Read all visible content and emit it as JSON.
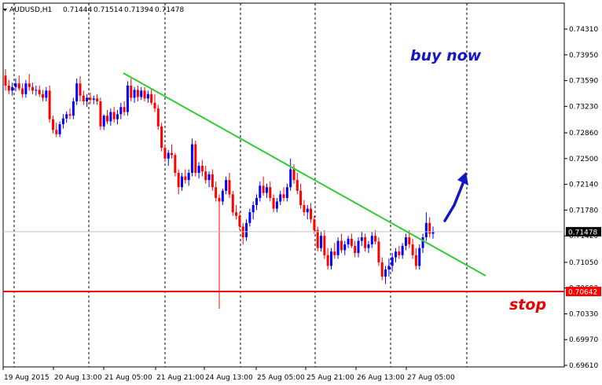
{
  "window": {
    "symbol_header": "AUDUSD,H1",
    "ohlc": [
      "0.71444",
      "0.71514",
      "0.71394",
      "0.71478"
    ]
  },
  "annotations": {
    "buy_label": "buy now",
    "stop_label": "stop"
  },
  "colors": {
    "background": "#ffffff",
    "bull_candle": "#0000ff",
    "bear_candle": "#ff0000",
    "trendline": "#33cc33",
    "stop_line": "#ff0000",
    "arrow": "#1414c8",
    "current_price_line": "#c0c0c0",
    "grid": "#000000"
  },
  "icons": {
    "menu": "triangle-down-icon",
    "arrow": "up-arrow-icon"
  },
  "chart_data": {
    "type": "candlestick",
    "symbol": "AUDUSD",
    "timeframe": "H1",
    "ylim": [
      0.6962,
      0.7456
    ],
    "y_ticks": [
      "0.74310",
      "0.73950",
      "0.73590",
      "0.73230",
      "0.72860",
      "0.72500",
      "0.72140",
      "0.71780",
      "0.71420",
      "0.71050",
      "0.70690",
      "0.70330",
      "0.69970",
      "0.69610"
    ],
    "x_labels": [
      "19 Aug 2015",
      "20 Aug 13:00",
      "21 Aug 05:00",
      "21 Aug 21:00",
      "24 Aug 13:00",
      "25 Aug 05:00",
      "25 Aug 21:00",
      "26 Aug 13:00",
      "27 Aug 05:00"
    ],
    "current_price": "0.71478",
    "stop_level": "0.70642",
    "candles": [
      [
        0.7366,
        0.7375,
        0.7345,
        0.7352
      ],
      [
        0.7352,
        0.736,
        0.734,
        0.7345
      ],
      [
        0.7345,
        0.7356,
        0.7338,
        0.735
      ],
      [
        0.735,
        0.7362,
        0.7344,
        0.7355
      ],
      [
        0.7355,
        0.7366,
        0.7345,
        0.7348
      ],
      [
        0.7348,
        0.7355,
        0.7335,
        0.734
      ],
      [
        0.734,
        0.736,
        0.7335,
        0.7355
      ],
      [
        0.7355,
        0.7368,
        0.7345,
        0.735
      ],
      [
        0.735,
        0.7356,
        0.734,
        0.7345
      ],
      [
        0.7345,
        0.7352,
        0.7338,
        0.7346
      ],
      [
        0.7346,
        0.7352,
        0.7336,
        0.734
      ],
      [
        0.734,
        0.7346,
        0.733,
        0.7335
      ],
      [
        0.7335,
        0.735,
        0.733,
        0.7345
      ],
      [
        0.7345,
        0.7352,
        0.73,
        0.7305
      ],
      [
        0.7305,
        0.731,
        0.7285,
        0.729
      ],
      [
        0.729,
        0.73,
        0.728,
        0.7284
      ],
      [
        0.7284,
        0.7302,
        0.728,
        0.7298
      ],
      [
        0.7298,
        0.7312,
        0.7292,
        0.7306
      ],
      [
        0.7306,
        0.7316,
        0.73,
        0.7312
      ],
      [
        0.7312,
        0.732,
        0.7305,
        0.731
      ],
      [
        0.731,
        0.7335,
        0.7305,
        0.733
      ],
      [
        0.733,
        0.7362,
        0.7325,
        0.7355
      ],
      [
        0.7355,
        0.7365,
        0.733,
        0.7338
      ],
      [
        0.7338,
        0.7345,
        0.7325,
        0.733
      ],
      [
        0.733,
        0.734,
        0.7322,
        0.7335
      ],
      [
        0.7335,
        0.7342,
        0.7326,
        0.7332
      ],
      [
        0.7332,
        0.7338,
        0.7326,
        0.7334
      ],
      [
        0.7334,
        0.734,
        0.7325,
        0.733
      ],
      [
        0.733,
        0.7335,
        0.729,
        0.7295
      ],
      [
        0.7295,
        0.7312,
        0.729,
        0.731
      ],
      [
        0.731,
        0.7318,
        0.7298,
        0.7302
      ],
      [
        0.7302,
        0.732,
        0.7296,
        0.7315
      ],
      [
        0.7315,
        0.7322,
        0.73,
        0.7305
      ],
      [
        0.7305,
        0.7318,
        0.7298,
        0.7312
      ],
      [
        0.7312,
        0.7328,
        0.7305,
        0.7322
      ],
      [
        0.7322,
        0.733,
        0.731,
        0.7315
      ],
      [
        0.7315,
        0.7358,
        0.731,
        0.7352
      ],
      [
        0.7352,
        0.7362,
        0.733,
        0.7335
      ],
      [
        0.7335,
        0.735,
        0.7328,
        0.7346
      ],
      [
        0.7346,
        0.7352,
        0.733,
        0.7336
      ],
      [
        0.7336,
        0.735,
        0.7332,
        0.7345
      ],
      [
        0.7345,
        0.735,
        0.733,
        0.7334
      ],
      [
        0.7334,
        0.7345,
        0.7328,
        0.734
      ],
      [
        0.734,
        0.7348,
        0.7325,
        0.7328
      ],
      [
        0.7328,
        0.734,
        0.7315,
        0.732
      ],
      [
        0.732,
        0.7325,
        0.729,
        0.7295
      ],
      [
        0.7295,
        0.73,
        0.726,
        0.7265
      ],
      [
        0.7265,
        0.727,
        0.7245,
        0.725
      ],
      [
        0.725,
        0.7262,
        0.724,
        0.7258
      ],
      [
        0.7258,
        0.727,
        0.725,
        0.7255
      ],
      [
        0.7255,
        0.7258,
        0.7225,
        0.723
      ],
      [
        0.723,
        0.7235,
        0.72,
        0.721
      ],
      [
        0.721,
        0.723,
        0.7205,
        0.7225
      ],
      [
        0.7225,
        0.7235,
        0.7215,
        0.722
      ],
      [
        0.722,
        0.7235,
        0.7212,
        0.723
      ],
      [
        0.723,
        0.7278,
        0.7225,
        0.727
      ],
      [
        0.727,
        0.7275,
        0.7225,
        0.723
      ],
      [
        0.723,
        0.7245,
        0.7222,
        0.724
      ],
      [
        0.724,
        0.7248,
        0.7225,
        0.7232
      ],
      [
        0.7232,
        0.724,
        0.7215,
        0.722
      ],
      [
        0.722,
        0.7232,
        0.721,
        0.7228
      ],
      [
        0.7228,
        0.7235,
        0.7205,
        0.721
      ],
      [
        0.721,
        0.7218,
        0.719,
        0.7195
      ],
      [
        0.7195,
        0.72,
        0.704,
        0.719
      ],
      [
        0.719,
        0.7208,
        0.7185,
        0.7205
      ],
      [
        0.7205,
        0.7225,
        0.72,
        0.722
      ],
      [
        0.722,
        0.723,
        0.7195,
        0.72
      ],
      [
        0.72,
        0.7205,
        0.717,
        0.7175
      ],
      [
        0.7175,
        0.7185,
        0.7165,
        0.717
      ],
      [
        0.717,
        0.7175,
        0.715,
        0.7155
      ],
      [
        0.7155,
        0.716,
        0.713,
        0.714
      ],
      [
        0.714,
        0.7165,
        0.7135,
        0.716
      ],
      [
        0.716,
        0.718,
        0.7155,
        0.7175
      ],
      [
        0.7175,
        0.719,
        0.7165,
        0.7185
      ],
      [
        0.7185,
        0.72,
        0.7178,
        0.7195
      ],
      [
        0.7195,
        0.7218,
        0.719,
        0.7212
      ],
      [
        0.7212,
        0.7225,
        0.7198,
        0.7202
      ],
      [
        0.7202,
        0.7215,
        0.7195,
        0.721
      ],
      [
        0.721,
        0.7218,
        0.719,
        0.7195
      ],
      [
        0.7195,
        0.72,
        0.7175,
        0.718
      ],
      [
        0.718,
        0.7195,
        0.7175,
        0.719
      ],
      [
        0.719,
        0.7205,
        0.7185,
        0.72
      ],
      [
        0.72,
        0.721,
        0.719,
        0.7195
      ],
      [
        0.7195,
        0.7215,
        0.719,
        0.721
      ],
      [
        0.721,
        0.725,
        0.7205,
        0.7235
      ],
      [
        0.7235,
        0.7242,
        0.7215,
        0.722
      ],
      [
        0.722,
        0.723,
        0.72,
        0.7205
      ],
      [
        0.7205,
        0.7215,
        0.718,
        0.7185
      ],
      [
        0.7185,
        0.7192,
        0.717,
        0.7175
      ],
      [
        0.7175,
        0.7185,
        0.7165,
        0.718
      ],
      [
        0.718,
        0.7188,
        0.716,
        0.7165
      ],
      [
        0.7165,
        0.717,
        0.7145,
        0.715
      ],
      [
        0.715,
        0.7155,
        0.712,
        0.7125
      ],
      [
        0.7125,
        0.7148,
        0.712,
        0.7142
      ],
      [
        0.7142,
        0.715,
        0.711,
        0.7115
      ],
      [
        0.7115,
        0.7125,
        0.7095,
        0.71
      ],
      [
        0.71,
        0.7125,
        0.7095,
        0.712
      ],
      [
        0.712,
        0.7132,
        0.711,
        0.7115
      ],
      [
        0.7115,
        0.714,
        0.711,
        0.7135
      ],
      [
        0.7135,
        0.7145,
        0.7118,
        0.7122
      ],
      [
        0.7122,
        0.7135,
        0.7115,
        0.713
      ],
      [
        0.713,
        0.7142,
        0.7125,
        0.7138
      ],
      [
        0.7138,
        0.7145,
        0.7125,
        0.7128
      ],
      [
        0.7128,
        0.7135,
        0.7112,
        0.7118
      ],
      [
        0.7118,
        0.714,
        0.7112,
        0.7135
      ],
      [
        0.7135,
        0.7148,
        0.7128,
        0.714
      ],
      [
        0.714,
        0.7145,
        0.712,
        0.7125
      ],
      [
        0.7125,
        0.7135,
        0.7118,
        0.713
      ],
      [
        0.713,
        0.7148,
        0.7125,
        0.7142
      ],
      [
        0.7142,
        0.715,
        0.713,
        0.7134
      ],
      [
        0.7134,
        0.714,
        0.71,
        0.7105
      ],
      [
        0.7105,
        0.7112,
        0.708,
        0.7085
      ],
      [
        0.7085,
        0.71,
        0.7075,
        0.7095
      ],
      [
        0.7095,
        0.711,
        0.7085,
        0.71
      ],
      [
        0.71,
        0.7118,
        0.7092,
        0.7112
      ],
      [
        0.7112,
        0.7125,
        0.7105,
        0.712
      ],
      [
        0.712,
        0.7128,
        0.711,
        0.7115
      ],
      [
        0.7115,
        0.7132,
        0.711,
        0.7128
      ],
      [
        0.7128,
        0.7145,
        0.7122,
        0.714
      ],
      [
        0.714,
        0.715,
        0.7125,
        0.713
      ],
      [
        0.713,
        0.7138,
        0.711,
        0.7115
      ],
      [
        0.7115,
        0.7125,
        0.7095,
        0.71
      ],
      [
        0.71,
        0.713,
        0.7095,
        0.7125
      ],
      [
        0.7125,
        0.7145,
        0.7118,
        0.714
      ],
      [
        0.714,
        0.7175,
        0.7135,
        0.716
      ],
      [
        0.716,
        0.7168,
        0.714,
        0.7145
      ],
      [
        0.7145,
        0.7155,
        0.7138,
        0.7148
      ]
    ]
  }
}
